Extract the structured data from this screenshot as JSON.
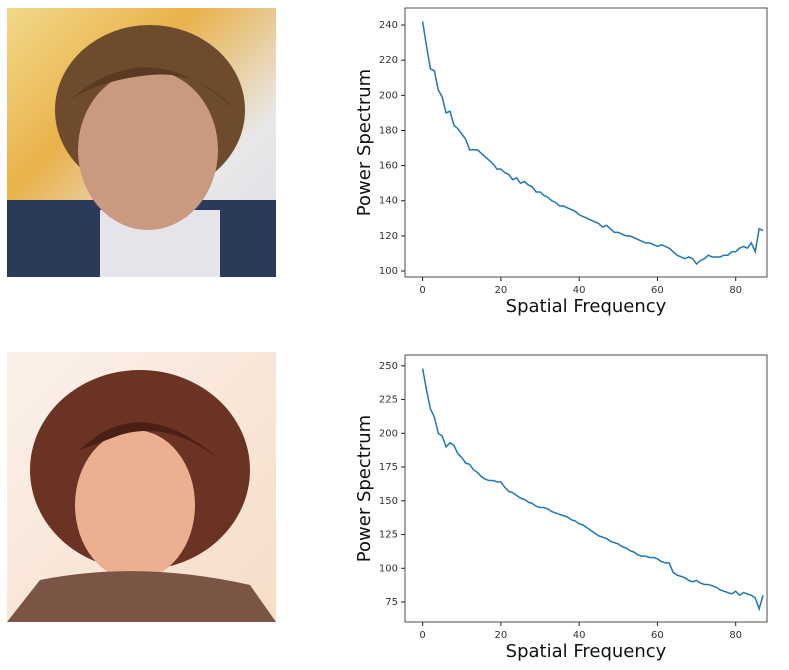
{
  "chart_data": [
    {
      "type": "line",
      "xlabel": "Spatial Frequency",
      "ylabel": "Power Spectrum",
      "color": "#1f77b4",
      "x": [
        0,
        1,
        2,
        3,
        4,
        5,
        6,
        7,
        8,
        9,
        10,
        11,
        12,
        13,
        14,
        15,
        16,
        17,
        18,
        19,
        20,
        21,
        22,
        23,
        24,
        25,
        26,
        27,
        28,
        29,
        30,
        31,
        32,
        33,
        34,
        35,
        36,
        37,
        38,
        39,
        40,
        41,
        42,
        43,
        44,
        45,
        46,
        47,
        48,
        49,
        50,
        51,
        52,
        53,
        54,
        55,
        56,
        57,
        58,
        59,
        60,
        61,
        62,
        63,
        64,
        65,
        66,
        67,
        68,
        69,
        70,
        71,
        72,
        73,
        74,
        75,
        76,
        77,
        78,
        79,
        80,
        81,
        82,
        83,
        84,
        85,
        86,
        87
      ],
      "values": [
        242,
        228,
        215,
        214,
        203,
        199,
        190,
        191,
        183,
        181,
        178,
        175,
        169,
        169,
        169,
        167,
        165,
        163,
        161,
        158,
        158,
        156,
        155,
        152,
        153,
        150,
        151,
        149,
        148,
        145,
        145,
        143,
        142,
        140,
        139,
        137,
        137,
        136,
        135,
        134,
        132,
        131,
        130,
        129,
        128,
        127,
        125,
        126,
        124,
        122,
        122,
        121,
        120,
        120,
        119,
        118,
        117,
        116,
        116,
        115,
        114,
        115,
        114,
        113,
        111,
        109,
        108,
        107,
        108,
        107,
        104,
        106,
        107,
        109,
        108,
        108,
        108,
        109,
        109,
        111,
        111,
        113,
        114,
        113,
        116,
        111,
        124,
        123
      ],
      "xlim": [
        -4.5,
        88
      ],
      "xticks": [
        0,
        20,
        40,
        60,
        80
      ],
      "ylim": [
        96.6,
        249.7
      ],
      "yticks": [
        100,
        120,
        140,
        160,
        180,
        200,
        220,
        240
      ]
    },
    {
      "type": "line",
      "xlabel": "Spatial Frequency",
      "ylabel": "Power Spectrum",
      "color": "#1f77b4",
      "x": [
        0,
        1,
        2,
        3,
        4,
        5,
        6,
        7,
        8,
        9,
        10,
        11,
        12,
        13,
        14,
        15,
        16,
        17,
        18,
        19,
        20,
        21,
        22,
        23,
        24,
        25,
        26,
        27,
        28,
        29,
        30,
        31,
        32,
        33,
        34,
        35,
        36,
        37,
        38,
        39,
        40,
        41,
        42,
        43,
        44,
        45,
        46,
        47,
        48,
        49,
        50,
        51,
        52,
        53,
        54,
        55,
        56,
        57,
        58,
        59,
        60,
        61,
        62,
        63,
        64,
        65,
        66,
        67,
        68,
        69,
        70,
        71,
        72,
        73,
        74,
        75,
        76,
        77,
        78,
        79,
        80,
        81,
        82,
        83,
        84,
        85,
        86,
        87
      ],
      "values": [
        248,
        232,
        218,
        212,
        200,
        198,
        190,
        193,
        191,
        185,
        182,
        178,
        177,
        173,
        171,
        168,
        166,
        165,
        165,
        164,
        164,
        160,
        157,
        156,
        154,
        152,
        151,
        149,
        148,
        146,
        145,
        145,
        144,
        142,
        141,
        140,
        139,
        138,
        136,
        135,
        133,
        132,
        130,
        128,
        126,
        124,
        123,
        122,
        120,
        119,
        118,
        116,
        115,
        113,
        112,
        110,
        109,
        109,
        108,
        108,
        107,
        105,
        104,
        104,
        97,
        95,
        94,
        93,
        91,
        90,
        91,
        89,
        88,
        88,
        87,
        86,
        84,
        83,
        82,
        81,
        83,
        80,
        82,
        81,
        80,
        78,
        70,
        80
      ],
      "xlim": [
        -4.5,
        88
      ],
      "xticks": [
        0,
        20,
        40,
        60,
        80
      ],
      "ylim": [
        60.2,
        258
      ],
      "yticks": [
        75,
        100,
        125,
        150,
        175,
        200,
        225,
        250
      ]
    }
  ]
}
